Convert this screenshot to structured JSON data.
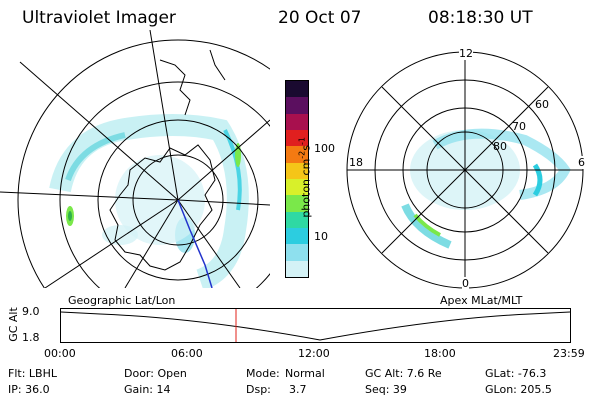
{
  "header": {
    "instrument": "Ultraviolet Imager",
    "date": "20 Oct 07",
    "time": "08:18:30 UT"
  },
  "colorbar": {
    "label": "photon cm",
    "exp1": "-2",
    "s": "s",
    "exp2": "-1",
    "ticks": [
      "100",
      "10"
    ],
    "colors": [
      "#1a0a30",
      "#5b0f5f",
      "#a8104e",
      "#e01f1f",
      "#f47a12",
      "#f5c518",
      "#d8f02a",
      "#7ae84a",
      "#2fd9a3",
      "#2ccde0",
      "#8ee0ee",
      "#d4f2f6"
    ]
  },
  "left_map": {
    "caption": "Geographic Lat/Lon",
    "aurora_color": "#5cd3dc"
  },
  "right_map": {
    "caption": "Apex MLat/MLT",
    "mlt_labels": {
      "top": "12",
      "bottom": "0",
      "left": "18",
      "right": "6"
    },
    "lat_labels": [
      "60",
      "70",
      "80"
    ]
  },
  "altitude_plot": {
    "ylabel": "GC Alt",
    "yticks": [
      "9.0",
      "1.8"
    ],
    "xticks": [
      "00:00",
      "06:00",
      "12:00",
      "18:00",
      "23:59"
    ],
    "current_time": "08:18:30",
    "marker_color": "#e0201a"
  },
  "footer": {
    "col1": [
      "Flt: LBHL",
      "IP: 36.0"
    ],
    "col2": [
      "Door: Open",
      "Gain: 14"
    ],
    "col3a": [
      "Mode:",
      "Dsp:"
    ],
    "col3b": [
      "Normal",
      "3.7"
    ],
    "col4": [
      "GC Alt: 7.6 Re",
      "Seq: 39"
    ],
    "col5": [
      "GLat: -76.3",
      "GLon: 205.5"
    ]
  }
}
